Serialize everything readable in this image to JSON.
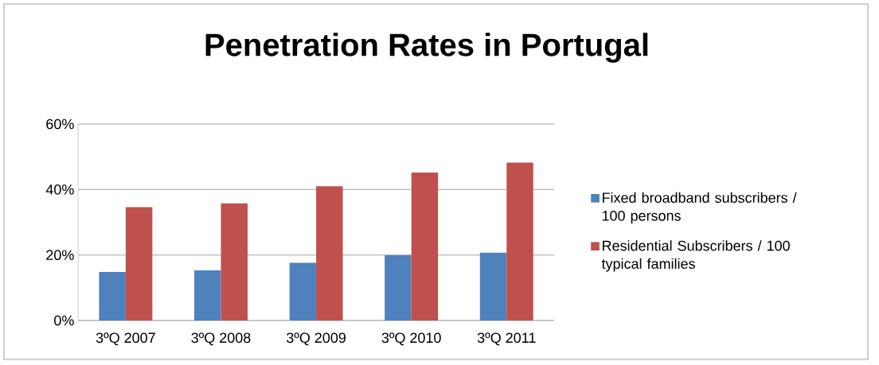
{
  "chart_data": {
    "type": "bar",
    "title": "Penetration Rates in Portugal",
    "categories": [
      "3ºQ 2007",
      "3ºQ 2008",
      "3ºQ 2009",
      "3ºQ 2010",
      "3ºQ 2011"
    ],
    "series": [
      {
        "name": "Fixed broadband subscribers / 100 persons",
        "color": "#4f81bd",
        "values": [
          14.8,
          15.3,
          17.6,
          19.9,
          20.7
        ]
      },
      {
        "name": "Residential Subscribers / 100 typical families",
        "color": "#c0504d",
        "values": [
          34.6,
          35.8,
          41.0,
          45.2,
          48.2
        ]
      }
    ],
    "ylim": [
      0,
      60
    ],
    "yticks": [
      {
        "value": 0,
        "label": "0%"
      },
      {
        "value": 20,
        "label": "20%"
      },
      {
        "value": 40,
        "label": "40%"
      },
      {
        "value": 60,
        "label": "60%"
      }
    ],
    "grid": "y",
    "legend": "right"
  }
}
